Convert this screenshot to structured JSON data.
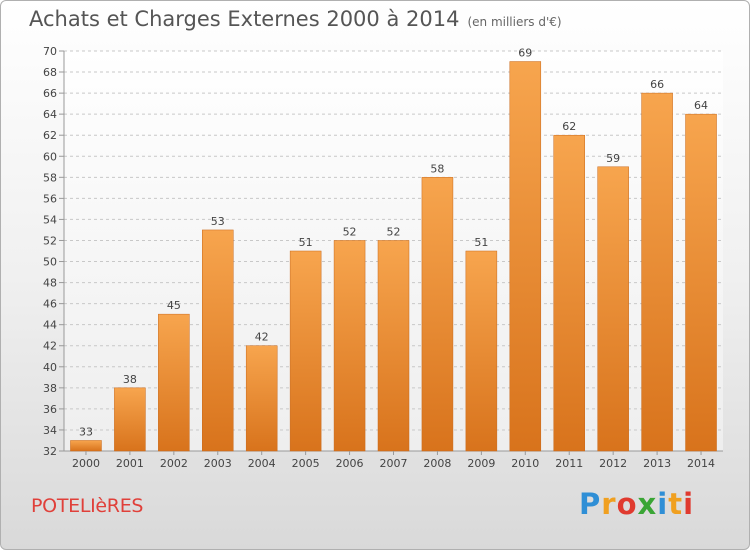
{
  "header": {
    "title": "Achats et Charges Externes 2000 à 2014",
    "unit": "(en milliers d'€)"
  },
  "footer": {
    "commune": "POTELIèRES",
    "brand": "Proxiti",
    "brand_letters": [
      {
        "ch": "P",
        "color": "#2f8fd6"
      },
      {
        "ch": "r",
        "color": "#f0a020"
      },
      {
        "ch": "o",
        "color": "#e03a2f"
      },
      {
        "ch": "x",
        "color": "#3aa535"
      },
      {
        "ch": "i",
        "color": "#2f8fd6"
      },
      {
        "ch": "t",
        "color": "#f0a020"
      },
      {
        "ch": "i",
        "color": "#e03a2f"
      }
    ]
  },
  "chart_data": {
    "type": "bar",
    "title": "Achats et Charges Externes 2000 à 2014",
    "categories": [
      "2000",
      "2001",
      "2002",
      "2003",
      "2004",
      "2005",
      "2006",
      "2007",
      "2008",
      "2009",
      "2010",
      "2011",
      "2012",
      "2013",
      "2014"
    ],
    "values": [
      33,
      38,
      45,
      53,
      42,
      51,
      52,
      52,
      58,
      51,
      69,
      62,
      59,
      66,
      64
    ],
    "ylim": [
      32,
      70
    ],
    "yticks": [
      32,
      34,
      36,
      38,
      40,
      42,
      44,
      46,
      48,
      50,
      52,
      54,
      56,
      58,
      60,
      62,
      64,
      66,
      68,
      70
    ],
    "grid": true,
    "colors": {
      "bar_top": "#f7a54e",
      "bar_bottom": "#d8731c",
      "grid": "#c8c8c8",
      "text": "#444444"
    }
  }
}
